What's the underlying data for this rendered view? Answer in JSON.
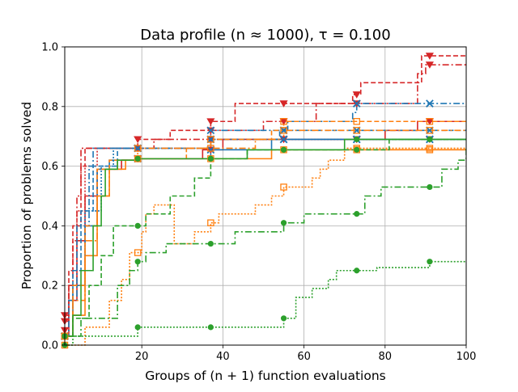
{
  "chart_data": {
    "type": "line",
    "step": true,
    "title": "Data profile (n ≈ 1000), τ = 0.100",
    "xlabel": "Groups of (n + 1) function evaluations",
    "ylabel": "Proportion of problems solved",
    "xlim": [
      1,
      100
    ],
    "ylim": [
      0,
      1
    ],
    "xticks": [
      20,
      40,
      60,
      80,
      100
    ],
    "yticks": [
      0.0,
      0.2,
      0.4,
      0.6,
      0.8,
      1.0
    ],
    "xtick_labels": [
      "20",
      "40",
      "60",
      "80",
      "100"
    ],
    "ytick_labels": [
      "0.0",
      "0.2",
      "0.4",
      "0.6",
      "0.8",
      "1.0"
    ],
    "grid": true,
    "legend": false,
    "marker_x": [
      1,
      19,
      37,
      55,
      73,
      91
    ],
    "series": [
      {
        "name": "red-dashed-triangle",
        "color": "#d62728",
        "dash": "6,3",
        "marker": "triangle-down",
        "steps": [
          [
            1,
            0.1
          ],
          [
            2,
            0.25
          ],
          [
            3,
            0.4
          ],
          [
            5,
            0.6
          ],
          [
            6,
            0.66
          ],
          [
            19,
            0.69
          ],
          [
            27,
            0.72
          ],
          [
            37,
            0.75
          ],
          [
            43,
            0.81
          ],
          [
            72,
            0.84
          ],
          [
            74,
            0.88
          ],
          [
            89,
            0.97
          ]
        ]
      },
      {
        "name": "red-dashdot-triangle",
        "color": "#d62728",
        "dash": "8,3,2,3",
        "marker": "triangle-down",
        "steps": [
          [
            1,
            0.08
          ],
          [
            2,
            0.2
          ],
          [
            3,
            0.35
          ],
          [
            4,
            0.5
          ],
          [
            5,
            0.66
          ],
          [
            19,
            0.66
          ],
          [
            23,
            0.69
          ],
          [
            37,
            0.72
          ],
          [
            50,
            0.75
          ],
          [
            63,
            0.81
          ],
          [
            72,
            0.81
          ],
          [
            75,
            0.81
          ],
          [
            88,
            0.91
          ],
          [
            90,
            0.94
          ]
        ]
      },
      {
        "name": "red-solid-triangle",
        "color": "#d62728",
        "dash": "",
        "marker": "triangle-down",
        "steps": [
          [
            1,
            0.03
          ],
          [
            2,
            0.15
          ],
          [
            4,
            0.35
          ],
          [
            6,
            0.5
          ],
          [
            9,
            0.59
          ],
          [
            15,
            0.62
          ],
          [
            19,
            0.625
          ],
          [
            35,
            0.655
          ],
          [
            40,
            0.69
          ],
          [
            80,
            0.72
          ],
          [
            88,
            0.75
          ]
        ]
      },
      {
        "name": "red-dotted-triangle",
        "color": "#d62728",
        "dash": "2,2",
        "marker": "triangle-down",
        "steps": [
          [
            1,
            0.05
          ],
          [
            2,
            0.2
          ],
          [
            4,
            0.45
          ],
          [
            6,
            0.6
          ],
          [
            9,
            0.66
          ],
          [
            19,
            0.66
          ],
          [
            37,
            0.69
          ]
        ]
      },
      {
        "name": "blue-dashdot-x",
        "color": "#1f77b4",
        "dash": "8,3,2,3",
        "marker": "x",
        "steps": [
          [
            1,
            0.03
          ],
          [
            2,
            0.15
          ],
          [
            4,
            0.4
          ],
          [
            7,
            0.6
          ],
          [
            8,
            0.66
          ],
          [
            18,
            0.66
          ],
          [
            37,
            0.72
          ],
          [
            56,
            0.75
          ],
          [
            72,
            0.78
          ],
          [
            73,
            0.81
          ]
        ]
      },
      {
        "name": "blue-dashed-x",
        "color": "#1f77b4",
        "dash": "6,3",
        "marker": "x",
        "steps": [
          [
            1,
            0.03
          ],
          [
            3,
            0.25
          ],
          [
            5,
            0.45
          ],
          [
            8,
            0.6
          ],
          [
            14,
            0.66
          ],
          [
            19,
            0.66
          ],
          [
            37,
            0.69
          ],
          [
            54,
            0.72
          ],
          [
            72,
            0.72
          ],
          [
            84,
            0.72
          ]
        ]
      },
      {
        "name": "blue-solid-x",
        "color": "#1f77b4",
        "dash": "",
        "marker": "x",
        "steps": [
          [
            1,
            0.03
          ],
          [
            3,
            0.2
          ],
          [
            6,
            0.4
          ],
          [
            9,
            0.59
          ],
          [
            12,
            0.62
          ],
          [
            19,
            0.625
          ],
          [
            37,
            0.655
          ],
          [
            52,
            0.69
          ]
        ]
      },
      {
        "name": "blue-dotted-x",
        "color": "#1f77b4",
        "dash": "2,2",
        "marker": "x",
        "steps": [
          [
            1,
            0.03
          ],
          [
            3,
            0.2
          ],
          [
            6,
            0.45
          ],
          [
            10,
            0.6
          ],
          [
            13,
            0.66
          ],
          [
            19,
            0.66
          ],
          [
            37,
            0.69
          ],
          [
            56,
            0.69
          ]
        ]
      },
      {
        "name": "orange-dashed-square",
        "color": "#ff7f0e",
        "dash": "6,3",
        "marker": "square",
        "steps": [
          [
            1,
            0.03
          ],
          [
            3,
            0.2
          ],
          [
            6,
            0.4
          ],
          [
            9,
            0.59
          ],
          [
            12,
            0.62
          ],
          [
            19,
            0.625
          ],
          [
            31,
            0.66
          ],
          [
            37,
            0.69
          ],
          [
            52,
            0.72
          ],
          [
            55,
            0.75
          ],
          [
            72,
            0.75
          ],
          [
            75,
            0.75
          ]
        ]
      },
      {
        "name": "orange-dashdot-square",
        "color": "#ff7f0e",
        "dash": "8,3,2,3",
        "marker": "square",
        "steps": [
          [
            1,
            0.03
          ],
          [
            3,
            0.15
          ],
          [
            6,
            0.35
          ],
          [
            9,
            0.5
          ],
          [
            12,
            0.59
          ],
          [
            14,
            0.62
          ],
          [
            19,
            0.66
          ],
          [
            37,
            0.66
          ],
          [
            48,
            0.69
          ],
          [
            55,
            0.72
          ],
          [
            72,
            0.72
          ],
          [
            92,
            0.72
          ]
        ]
      },
      {
        "name": "orange-solid-square",
        "color": "#ff7f0e",
        "dash": "",
        "marker": "square",
        "steps": [
          [
            1,
            0.03
          ],
          [
            3,
            0.1
          ],
          [
            6,
            0.3
          ],
          [
            9,
            0.5
          ],
          [
            12,
            0.59
          ],
          [
            16,
            0.62
          ],
          [
            19,
            0.625
          ],
          [
            37,
            0.625
          ],
          [
            52,
            0.655
          ],
          [
            72,
            0.655
          ]
        ]
      },
      {
        "name": "orange-dotted-square",
        "color": "#ff7f0e",
        "dash": "2,2",
        "marker": "square",
        "steps": [
          [
            1,
            0.0
          ],
          [
            6,
            0.06
          ],
          [
            12,
            0.15
          ],
          [
            15,
            0.22
          ],
          [
            17,
            0.31
          ],
          [
            19,
            0.31
          ],
          [
            20,
            0.38
          ],
          [
            21,
            0.44
          ],
          [
            23,
            0.47
          ],
          [
            28,
            0.34
          ],
          [
            33,
            0.38
          ],
          [
            37,
            0.41
          ],
          [
            39,
            0.44
          ],
          [
            48,
            0.47
          ],
          [
            52,
            0.5
          ],
          [
            55,
            0.53
          ],
          [
            62,
            0.56
          ],
          [
            64,
            0.59
          ],
          [
            66,
            0.62
          ],
          [
            70,
            0.66
          ],
          [
            80,
            0.66
          ],
          [
            90,
            0.66
          ]
        ]
      },
      {
        "name": "green-solid-circle",
        "color": "#2ca02c",
        "dash": "",
        "marker": "circle",
        "steps": [
          [
            1,
            0.03
          ],
          [
            3,
            0.1
          ],
          [
            5,
            0.25
          ],
          [
            8,
            0.4
          ],
          [
            10,
            0.5
          ],
          [
            11,
            0.59
          ],
          [
            14,
            0.62
          ],
          [
            19,
            0.625
          ],
          [
            37,
            0.625
          ],
          [
            46,
            0.655
          ],
          [
            55,
            0.655
          ],
          [
            70,
            0.69
          ]
        ]
      },
      {
        "name": "green-dashed-circle",
        "color": "#2ca02c",
        "dash": "6,3",
        "marker": "circle",
        "steps": [
          [
            1,
            0.03
          ],
          [
            3,
            0.09
          ],
          [
            7,
            0.2
          ],
          [
            10,
            0.3
          ],
          [
            13,
            0.4
          ],
          [
            19,
            0.4
          ],
          [
            21,
            0.44
          ],
          [
            27,
            0.5
          ],
          [
            33,
            0.56
          ],
          [
            37,
            0.625
          ],
          [
            46,
            0.655
          ],
          [
            62,
            0.655
          ],
          [
            73,
            0.655
          ],
          [
            81,
            0.69
          ]
        ]
      },
      {
        "name": "green-dashdot-circle",
        "color": "#2ca02c",
        "dash": "8,3,2,3",
        "marker": "circle",
        "steps": [
          [
            1,
            0.03
          ],
          [
            5,
            0.09
          ],
          [
            14,
            0.2
          ],
          [
            17,
            0.25
          ],
          [
            19,
            0.28
          ],
          [
            21,
            0.31
          ],
          [
            26,
            0.34
          ],
          [
            37,
            0.34
          ],
          [
            43,
            0.38
          ],
          [
            55,
            0.41
          ],
          [
            60,
            0.44
          ],
          [
            73,
            0.44
          ],
          [
            75,
            0.5
          ],
          [
            79,
            0.53
          ],
          [
            91,
            0.53
          ],
          [
            94,
            0.59
          ],
          [
            98,
            0.62
          ],
          [
            100,
            0.66
          ]
        ]
      },
      {
        "name": "green-dotted-circle",
        "color": "#2ca02c",
        "dash": "2,2",
        "marker": "circle",
        "steps": [
          [
            1,
            0.0
          ],
          [
            3,
            0.03
          ],
          [
            19,
            0.06
          ],
          [
            55,
            0.09
          ],
          [
            58,
            0.16
          ],
          [
            62,
            0.19
          ],
          [
            66,
            0.22
          ],
          [
            68,
            0.25
          ],
          [
            78,
            0.26
          ],
          [
            91,
            0.28
          ]
        ]
      }
    ]
  }
}
